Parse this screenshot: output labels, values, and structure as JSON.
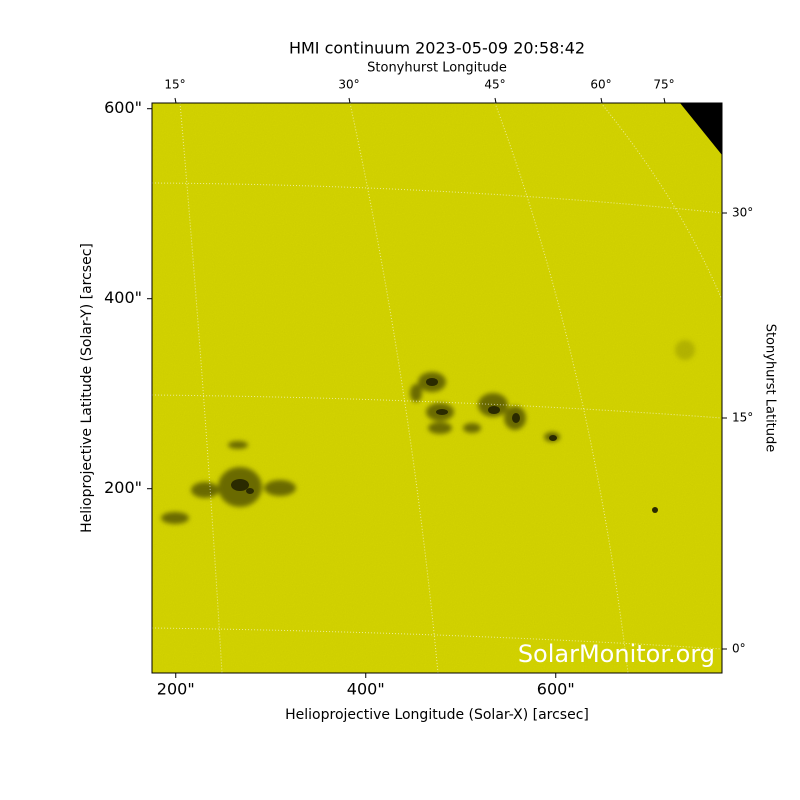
{
  "chart_data": {
    "type": "image",
    "title": "HMI continuum 2023-05-09 20:58:42",
    "x_label": "Helioprojective Longitude (Solar-X) [arcsec]",
    "y_label": "Helioprojective Latitude (Solar-Y) [arcsec]",
    "top_label": "Stonyhurst Longitude",
    "right_label": "Stonyhurst Latitude",
    "xlim": [
      175,
      775
    ],
    "ylim": [
      6,
      606
    ],
    "xticks": [
      {
        "value": 200,
        "label": "200\""
      },
      {
        "value": 400,
        "label": "400\""
      },
      {
        "value": 600,
        "label": "600\""
      }
    ],
    "yticks": [
      {
        "value": 200,
        "label": "200\""
      },
      {
        "value": 400,
        "label": "400\""
      },
      {
        "value": 600,
        "label": "600\""
      }
    ],
    "top_ticks": [
      {
        "value": 15,
        "label": "15°"
      },
      {
        "value": 30,
        "label": "30°"
      },
      {
        "value": 45,
        "label": "45°"
      },
      {
        "value": 60,
        "label": "60°"
      },
      {
        "value": 75,
        "label": "75°"
      }
    ],
    "right_ticks": [
      {
        "value": 30,
        "label": "30°"
      },
      {
        "value": 15,
        "label": "15°"
      },
      {
        "value": 0,
        "label": "0°"
      }
    ],
    "watermark": "SolarMonitor.org"
  }
}
